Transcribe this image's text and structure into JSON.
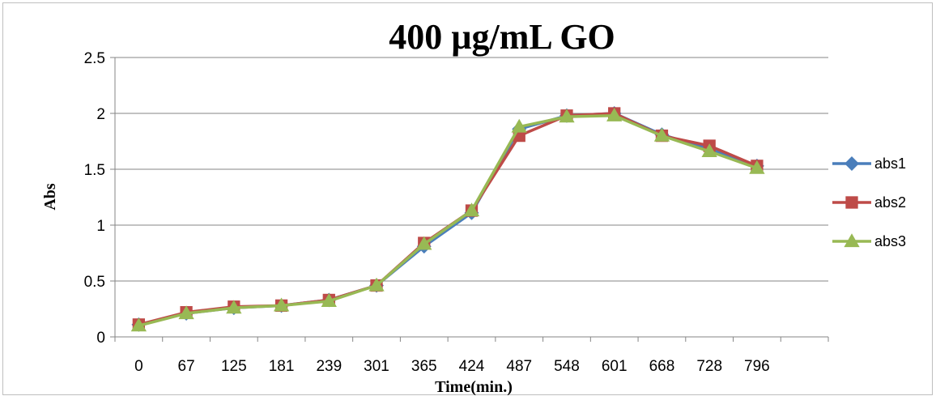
{
  "chart_data": {
    "type": "line",
    "title": "400 µg/mL GO",
    "xlabel": "Time(min.)",
    "ylabel": "Abs",
    "categories": [
      "0",
      "67",
      "125",
      "181",
      "239",
      "301",
      "365",
      "424",
      "487",
      "548",
      "601",
      "668",
      "728",
      "796"
    ],
    "ylim": [
      0,
      2.5
    ],
    "yticks": [
      "0",
      "0.5",
      "1",
      "1.5",
      "2",
      "2.5"
    ],
    "grid": true,
    "legend_position": "right",
    "series": [
      {
        "name": "abs1",
        "color": "#4a7ebb",
        "marker": "diamond",
        "values": [
          0.11,
          0.21,
          0.26,
          0.28,
          0.33,
          0.46,
          0.81,
          1.11,
          1.86,
          1.98,
          2.0,
          1.81,
          1.68,
          1.53
        ]
      },
      {
        "name": "abs2",
        "color": "#be4b48",
        "marker": "square",
        "values": [
          0.11,
          0.22,
          0.27,
          0.28,
          0.33,
          0.46,
          0.84,
          1.13,
          1.8,
          1.98,
          2.0,
          1.8,
          1.71,
          1.53
        ]
      },
      {
        "name": "abs3",
        "color": "#98b954",
        "marker": "triangle",
        "values": [
          0.1,
          0.21,
          0.26,
          0.28,
          0.32,
          0.46,
          0.83,
          1.13,
          1.88,
          1.97,
          1.98,
          1.8,
          1.66,
          1.51
        ]
      }
    ]
  }
}
